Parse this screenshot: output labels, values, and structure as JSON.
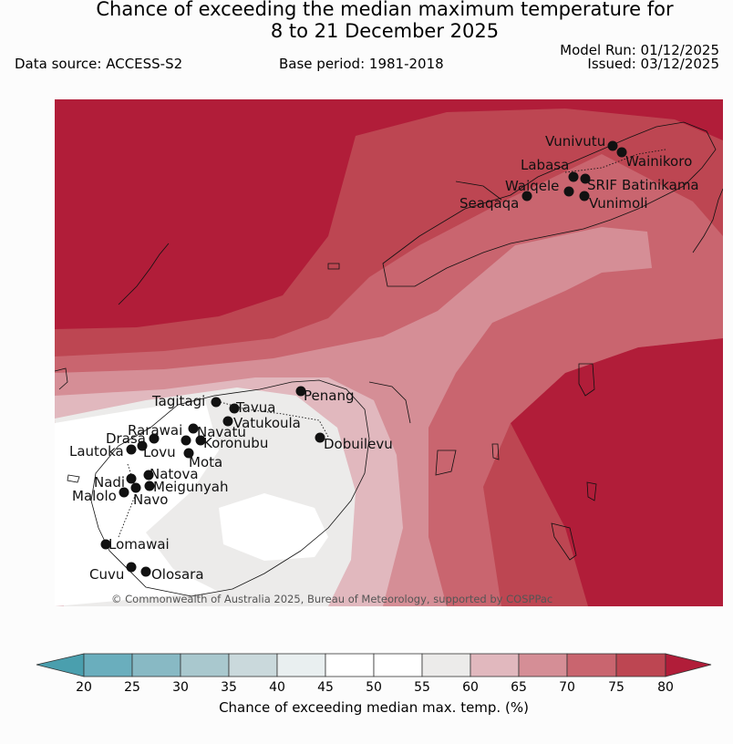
{
  "header": {
    "title_line1": "Chance of exceeding the median maximum temperature for",
    "title_line2": "8 to 21 December 2025",
    "data_source": "Data source: ACCESS-S2",
    "base_period": "Base period: 1981-2018",
    "model_run": "Model Run: 01/12/2025",
    "issued": "Issued: 03/12/2025"
  },
  "map": {
    "copyright": "© Commonwealth of Australia 2025, Bureau of Meteorology, supported by COSPPac",
    "stations": [
      {
        "name": "Vunivutu"
      },
      {
        "name": "Wainikoro"
      },
      {
        "name": "Labasa"
      },
      {
        "name": "SRIF"
      },
      {
        "name": "Batinikama"
      },
      {
        "name": "Waiqele"
      },
      {
        "name": "Seaqaqa"
      },
      {
        "name": "Vunimoli"
      },
      {
        "name": "Penang"
      },
      {
        "name": "Tagitagi"
      },
      {
        "name": "Tavua"
      },
      {
        "name": "Vatukoula"
      },
      {
        "name": "Rarawai"
      },
      {
        "name": "Navatu"
      },
      {
        "name": "Drasa"
      },
      {
        "name": "Koronubu"
      },
      {
        "name": "Lautoka"
      },
      {
        "name": "Lovu"
      },
      {
        "name": "Mota"
      },
      {
        "name": "Dobuilevu"
      },
      {
        "name": "Natova"
      },
      {
        "name": "Nadi"
      },
      {
        "name": "Meigunyah"
      },
      {
        "name": "Malolo"
      },
      {
        "name": "Navo"
      },
      {
        "name": "Lomawai"
      },
      {
        "name": "Cuvu"
      },
      {
        "name": "Olosara"
      }
    ]
  },
  "legend": {
    "label": "Chance of exceeding median max. temp. (%)",
    "ticks": [
      "20",
      "25",
      "30",
      "35",
      "40",
      "45",
      "50",
      "55",
      "60",
      "65",
      "70",
      "75",
      "80"
    ],
    "colors": {
      "below20": "#4a9fae",
      "b20_25": "#6aaebd",
      "b25_30": "#88b9c4",
      "b30_35": "#a9c8ce",
      "b35_40": "#cad9dc",
      "b40_45": "#e9eff0",
      "b45_50": "#ffffff",
      "b50_55": "#ffffff",
      "b55_60": "#ecebea",
      "b60_65": "#e1b8be",
      "b65_70": "#d58e96",
      "b70_75": "#c9656f",
      "b75_80": "#bd4652",
      "above80": "#b11d39"
    }
  }
}
